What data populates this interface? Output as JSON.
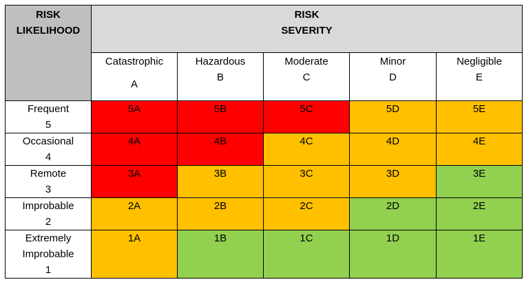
{
  "header": {
    "likelihood_line1": "RISK",
    "likelihood_line2": "LIKELIHOOD",
    "severity_line1": "RISK",
    "severity_line2": "SEVERITY"
  },
  "severity": [
    {
      "name": "Catastrophic",
      "letter": "A"
    },
    {
      "name": "Hazardous",
      "letter": "B"
    },
    {
      "name": "Moderate",
      "letter": "C"
    },
    {
      "name": "Minor",
      "letter": "D"
    },
    {
      "name": "Negligible",
      "letter": "E"
    }
  ],
  "colors": {
    "red": "#ff0000",
    "amber": "#ffc000",
    "green": "#92d050"
  },
  "rows": [
    {
      "likelihood": [
        "Frequent",
        "5"
      ],
      "cells": [
        {
          "code": "5A",
          "level": "red"
        },
        {
          "code": "5B",
          "level": "red"
        },
        {
          "code": "5C",
          "level": "red"
        },
        {
          "code": "5D",
          "level": "amber"
        },
        {
          "code": "5E",
          "level": "amber"
        }
      ]
    },
    {
      "likelihood": [
        "Occasional",
        "4"
      ],
      "cells": [
        {
          "code": "4A",
          "level": "red"
        },
        {
          "code": "4B",
          "level": "red"
        },
        {
          "code": "4C",
          "level": "amber"
        },
        {
          "code": "4D",
          "level": "amber"
        },
        {
          "code": "4E",
          "level": "amber"
        }
      ]
    },
    {
      "likelihood": [
        "Remote",
        "3"
      ],
      "cells": [
        {
          "code": "3A",
          "level": "red"
        },
        {
          "code": "3B",
          "level": "amber"
        },
        {
          "code": "3C",
          "level": "amber"
        },
        {
          "code": "3D",
          "level": "amber"
        },
        {
          "code": "3E",
          "level": "green"
        }
      ]
    },
    {
      "likelihood": [
        "Improbable",
        "2"
      ],
      "cells": [
        {
          "code": "2A",
          "level": "amber"
        },
        {
          "code": "2B",
          "level": "amber"
        },
        {
          "code": "2C",
          "level": "amber"
        },
        {
          "code": "2D",
          "level": "green"
        },
        {
          "code": "2E",
          "level": "green"
        }
      ]
    },
    {
      "likelihood": [
        "Extremely",
        "Improbable",
        "1"
      ],
      "cells": [
        {
          "code": "1A",
          "level": "amber"
        },
        {
          "code": "1B",
          "level": "green"
        },
        {
          "code": "1C",
          "level": "green"
        },
        {
          "code": "1D",
          "level": "green"
        },
        {
          "code": "1E",
          "level": "green"
        }
      ]
    }
  ]
}
